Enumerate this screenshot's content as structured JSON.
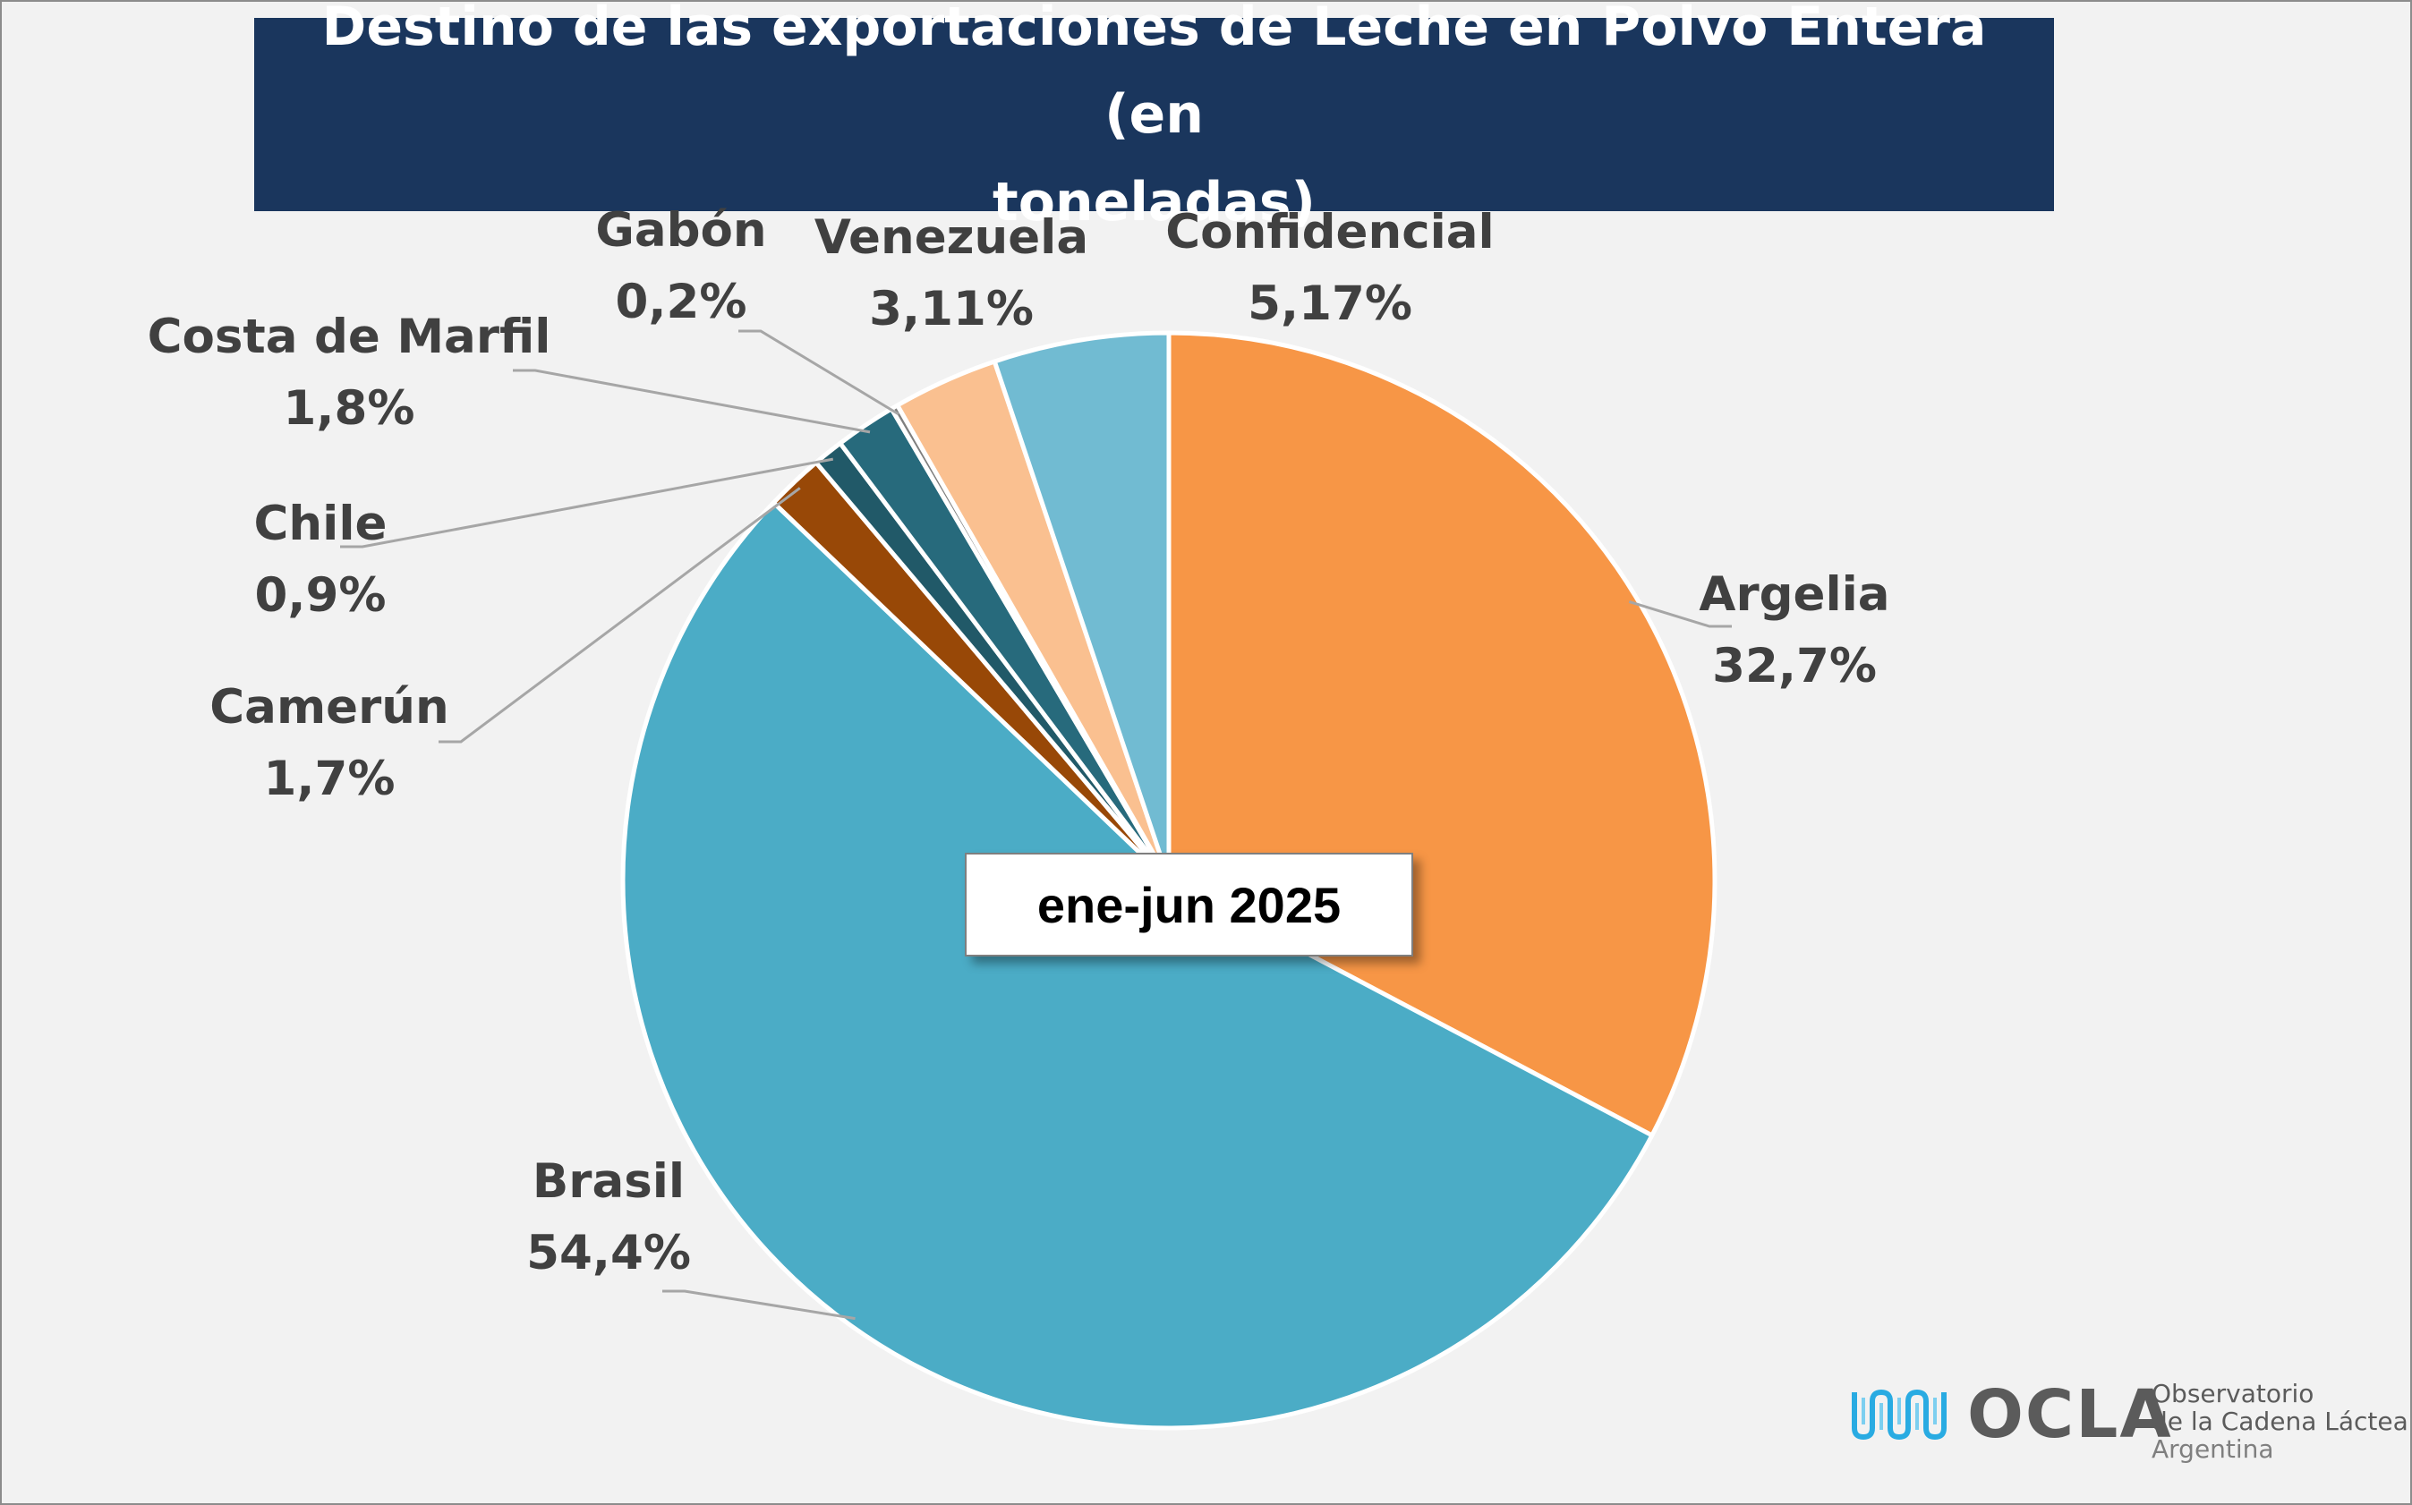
{
  "chart_data": {
    "type": "pie",
    "title": "Destino de las exportaciones de Leche en Polvo Entera (en toneladas)",
    "title_lines": [
      "Destino de las exportaciones de Leche en Polvo Entera (en",
      "toneladas)"
    ],
    "annotation": "ene-jun 2025",
    "slices": [
      {
        "name": "Argelia",
        "value": 32.7,
        "label": "32,7%",
        "color": "#f79646"
      },
      {
        "name": "Brasil",
        "value": 54.4,
        "label": "54,4%",
        "color": "#4bacc6"
      },
      {
        "name": "Camerún",
        "value": 1.7,
        "label": "1,7%",
        "color": "#984807"
      },
      {
        "name": "Chile",
        "value": 0.9,
        "label": "0,9%",
        "color": "#215968"
      },
      {
        "name": "Costa de Marfil",
        "value": 1.8,
        "label": "1,8%",
        "color": "#276a7c"
      },
      {
        "name": "Gabón",
        "value": 0.2,
        "label": "0,2%",
        "color": "#7f7f7f"
      },
      {
        "name": "Venezuela",
        "value": 3.11,
        "label": "3,11%",
        "color": "#fac090"
      },
      {
        "name": "Confidencial",
        "value": 5.17,
        "label": "5,17%",
        "color": "#71bbd2"
      }
    ]
  },
  "logo": {
    "mark": "OCLA",
    "line1": "Observatorio",
    "line2": "de la Cadena Láctea",
    "line3": "Argentina"
  }
}
